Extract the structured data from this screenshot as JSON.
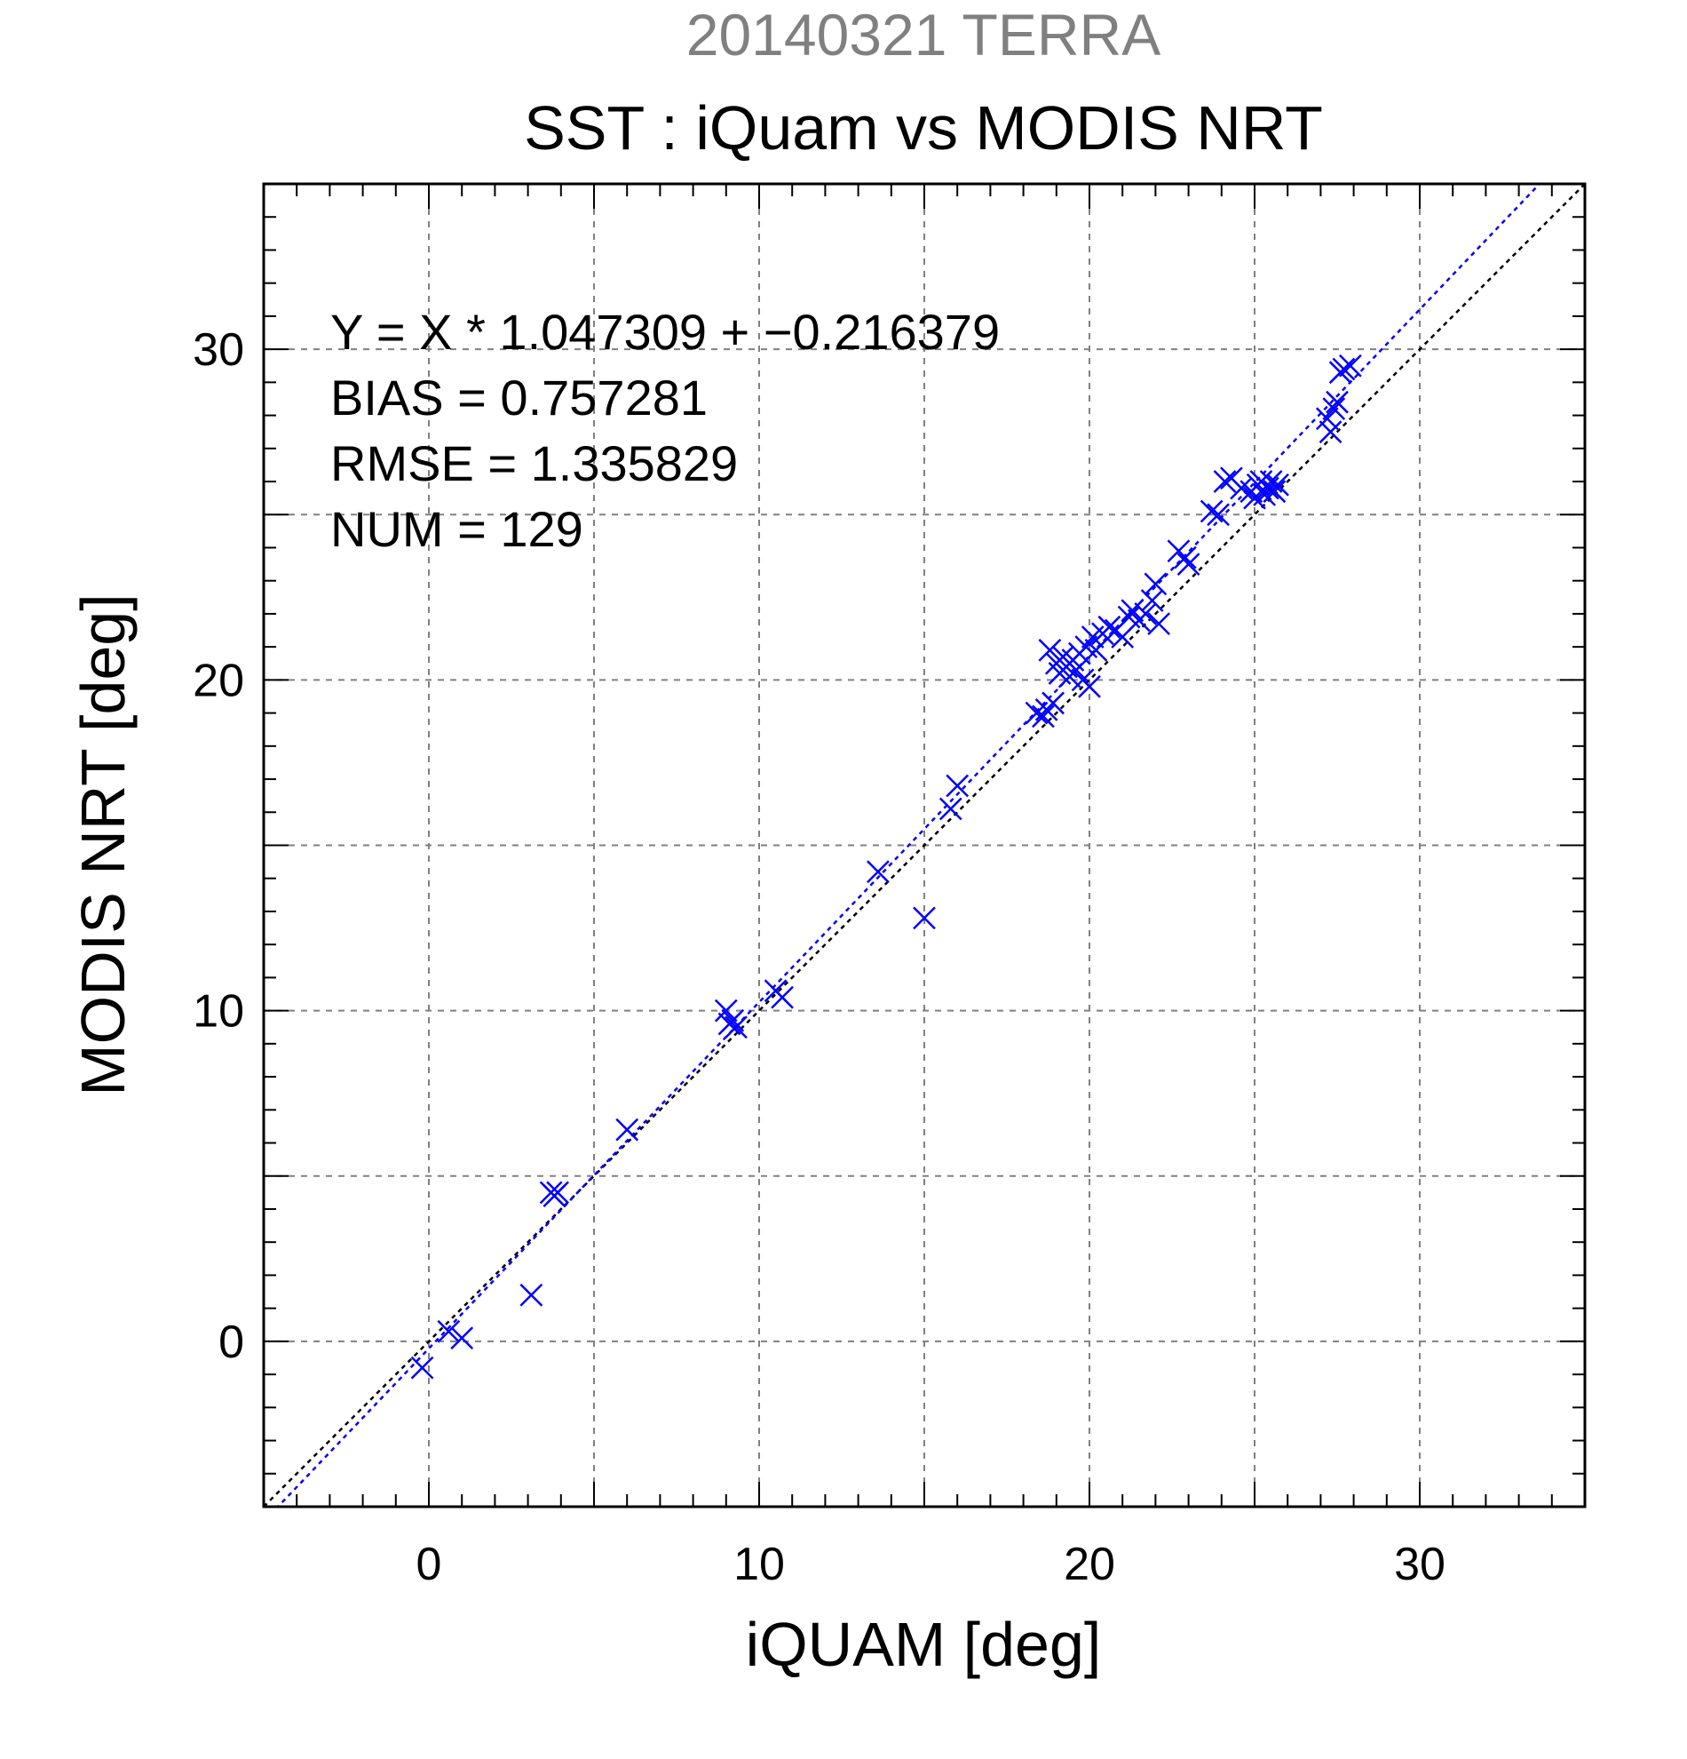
{
  "chart_data": {
    "type": "scatter",
    "supertitle": "20140321 TERRA",
    "title": "SST : iQuam vs MODIS NRT",
    "xlabel": "iQUAM [deg]",
    "ylabel": "MODIS NRT [deg]",
    "xlim": [
      -5,
      35
    ],
    "ylim": [
      -5,
      35
    ],
    "x_ticks": [
      0,
      10,
      20,
      30
    ],
    "y_ticks": [
      0,
      10,
      20,
      30
    ],
    "grid": true,
    "colors": {
      "points": "#0000ff",
      "fit_line": "#0000ff",
      "identity_line": "#000000",
      "supertitle": "#808080",
      "grid": "#808080"
    },
    "stats": {
      "equation": "Y = X * 1.047309 + −0.216379",
      "bias": "BIAS = 0.757281",
      "rmse": "RMSE = 1.335829",
      "num": "NUM = 129"
    },
    "fit_line": {
      "slope": 1.047309,
      "intercept": -0.216379
    },
    "identity_line": {
      "slope": 1,
      "intercept": 0
    },
    "marker": "x",
    "points": [
      [
        -0.2,
        -0.8
      ],
      [
        0.6,
        0.3
      ],
      [
        1.0,
        0.1
      ],
      [
        3.1,
        1.4
      ],
      [
        3.7,
        4.5
      ],
      [
        3.8,
        4.4
      ],
      [
        3.9,
        4.5
      ],
      [
        6.0,
        6.4
      ],
      [
        9.0,
        10.0
      ],
      [
        9.1,
        9.6
      ],
      [
        9.2,
        9.7
      ],
      [
        9.3,
        9.5
      ],
      [
        10.5,
        10.6
      ],
      [
        10.7,
        10.4
      ],
      [
        13.6,
        14.2
      ],
      [
        15.0,
        12.8
      ],
      [
        15.8,
        16.1
      ],
      [
        16.0,
        16.8
      ],
      [
        18.4,
        19.0
      ],
      [
        18.6,
        18.9
      ],
      [
        18.7,
        19.1
      ],
      [
        18.9,
        19.3
      ],
      [
        18.8,
        20.9
      ],
      [
        19.0,
        20.5
      ],
      [
        19.1,
        20.2
      ],
      [
        19.2,
        20.7
      ],
      [
        19.3,
        20.4
      ],
      [
        19.4,
        20.1
      ],
      [
        19.5,
        20.6
      ],
      [
        19.6,
        20.3
      ],
      [
        19.7,
        20.8
      ],
      [
        19.8,
        20.0
      ],
      [
        19.9,
        21.0
      ],
      [
        20.0,
        19.8
      ],
      [
        20.1,
        21.3
      ],
      [
        20.2,
        20.9
      ],
      [
        20.4,
        21.4
      ],
      [
        20.6,
        21.6
      ],
      [
        20.8,
        21.5
      ],
      [
        21.0,
        21.3
      ],
      [
        21.2,
        21.9
      ],
      [
        21.3,
        22.1
      ],
      [
        21.5,
        21.8
      ],
      [
        21.7,
        22.0
      ],
      [
        21.9,
        22.4
      ],
      [
        22.0,
        22.9
      ],
      [
        22.1,
        21.7
      ],
      [
        22.7,
        23.9
      ],
      [
        22.9,
        23.7
      ],
      [
        23.0,
        23.5
      ],
      [
        23.7,
        25.1
      ],
      [
        23.9,
        25.0
      ],
      [
        24.1,
        26.0
      ],
      [
        24.3,
        26.1
      ],
      [
        24.6,
        25.8
      ],
      [
        24.9,
        25.7
      ],
      [
        25.0,
        25.5
      ],
      [
        25.1,
        25.9
      ],
      [
        25.2,
        26.0
      ],
      [
        25.3,
        25.6
      ],
      [
        25.4,
        25.8
      ],
      [
        25.5,
        26.0
      ],
      [
        25.6,
        25.7
      ],
      [
        25.7,
        25.9
      ],
      [
        27.2,
        27.9
      ],
      [
        27.3,
        27.5
      ],
      [
        27.4,
        28.2
      ],
      [
        27.5,
        28.4
      ],
      [
        27.6,
        29.3
      ],
      [
        27.7,
        29.4
      ],
      [
        27.9,
        29.5
      ]
    ]
  }
}
